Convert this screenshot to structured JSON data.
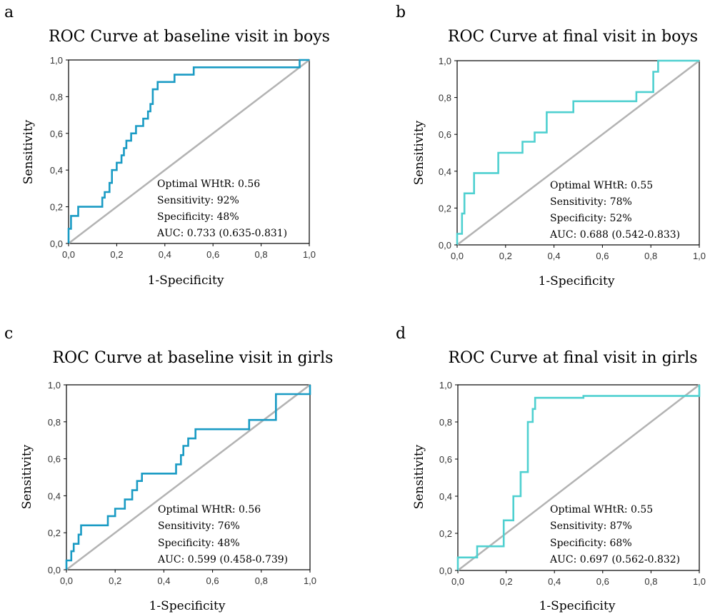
{
  "chart_data": [
    {
      "type": "line",
      "panel": "a",
      "title": "ROC Curve at baseline visit in boys",
      "xlabel": "1-Specificity",
      "ylabel": "Sensitivity",
      "xlim": [
        0,
        1
      ],
      "ylim": [
        0,
        1
      ],
      "xticks": [
        "0,0",
        "0,2",
        "0,4",
        "0,6",
        "0,8",
        "1,0"
      ],
      "yticks": [
        "0,0",
        "0,2",
        "0,4",
        "0,6",
        "0,8",
        "1,0"
      ],
      "color": "#1a9bc4",
      "reference_line_color": "#b3b3b3",
      "annotations": [
        "Optimal WHtR: 0.56",
        "Sensitivity: 92%",
        "Specificity: 48%",
        "AUC: 0.733 (0.635-0.831)"
      ],
      "x": [
        0,
        0,
        0.01,
        0.01,
        0.04,
        0.04,
        0.14,
        0.14,
        0.15,
        0.15,
        0.17,
        0.17,
        0.18,
        0.18,
        0.2,
        0.2,
        0.22,
        0.22,
        0.23,
        0.23,
        0.24,
        0.24,
        0.26,
        0.26,
        0.28,
        0.28,
        0.31,
        0.31,
        0.33,
        0.33,
        0.34,
        0.34,
        0.35,
        0.35,
        0.37,
        0.37,
        0.44,
        0.44,
        0.52,
        0.52,
        0.64,
        0.64,
        0.96,
        0.96,
        1
      ],
      "y": [
        0,
        0.08,
        0.08,
        0.15,
        0.15,
        0.2,
        0.2,
        0.25,
        0.25,
        0.28,
        0.28,
        0.33,
        0.33,
        0.4,
        0.4,
        0.44,
        0.44,
        0.48,
        0.48,
        0.52,
        0.52,
        0.56,
        0.56,
        0.6,
        0.6,
        0.64,
        0.64,
        0.68,
        0.68,
        0.72,
        0.72,
        0.76,
        0.76,
        0.84,
        0.84,
        0.88,
        0.88,
        0.92,
        0.92,
        0.96,
        0.96,
        0.96,
        0.96,
        1,
        1
      ]
    },
    {
      "type": "line",
      "panel": "b",
      "title": "ROC Curve at final visit in boys",
      "xlabel": "1-Specificity",
      "ylabel": "Sensitivity",
      "xlim": [
        0,
        1
      ],
      "ylim": [
        0,
        1
      ],
      "xticks": [
        "0,0",
        "0,2",
        "0,4",
        "0,6",
        "0,8",
        "1,0"
      ],
      "yticks": [
        "0,0",
        "0,2",
        "0,4",
        "0,6",
        "0,8",
        "1,0"
      ],
      "color": "#4fd0d0",
      "reference_line_color": "#b3b3b3",
      "annotations": [
        "Optimal WHtR: 0.55",
        "Sensitivity: 78%",
        "Specificity: 52%",
        "AUC: 0.688 (0.542-0.833)"
      ],
      "x": [
        0,
        0,
        0.02,
        0.02,
        0.03,
        0.03,
        0.07,
        0.07,
        0.17,
        0.17,
        0.27,
        0.27,
        0.32,
        0.32,
        0.37,
        0.37,
        0.48,
        0.48,
        0.74,
        0.74,
        0.81,
        0.81,
        0.83,
        0.83,
        1
      ],
      "y": [
        0,
        0.06,
        0.06,
        0.17,
        0.17,
        0.28,
        0.28,
        0.39,
        0.39,
        0.5,
        0.5,
        0.56,
        0.56,
        0.61,
        0.61,
        0.72,
        0.72,
        0.78,
        0.78,
        0.83,
        0.83,
        0.94,
        0.94,
        1,
        1
      ]
    },
    {
      "type": "line",
      "panel": "c",
      "title": "ROC Curve at baseline visit in girls",
      "xlabel": "1-Specificity",
      "ylabel": "Sensitivity",
      "xlim": [
        0,
        1
      ],
      "ylim": [
        0,
        1
      ],
      "xticks": [
        "0,0",
        "0,2",
        "0,4",
        "0,6",
        "0,8",
        "1,0"
      ],
      "yticks": [
        "0,0",
        "0,2",
        "0,4",
        "0,6",
        "0,8",
        "1,0"
      ],
      "color": "#1a9bc4",
      "reference_line_color": "#b3b3b3",
      "annotations": [
        "Optimal WHtR: 0.56",
        "Sensitivity: 76%",
        "Specificity: 48%",
        "AUC: 0.599 (0.458-0.739)"
      ],
      "x": [
        0,
        0,
        0.02,
        0.02,
        0.03,
        0.03,
        0.05,
        0.05,
        0.06,
        0.06,
        0.17,
        0.17,
        0.2,
        0.2,
        0.24,
        0.24,
        0.27,
        0.27,
        0.29,
        0.29,
        0.31,
        0.31,
        0.45,
        0.45,
        0.47,
        0.47,
        0.48,
        0.48,
        0.5,
        0.5,
        0.53,
        0.53,
        0.75,
        0.75,
        0.86,
        0.86,
        1,
        1
      ],
      "y": [
        0,
        0.05,
        0.05,
        0.1,
        0.1,
        0.14,
        0.14,
        0.19,
        0.19,
        0.24,
        0.24,
        0.29,
        0.29,
        0.33,
        0.33,
        0.38,
        0.38,
        0.43,
        0.43,
        0.48,
        0.48,
        0.52,
        0.52,
        0.57,
        0.57,
        0.62,
        0.62,
        0.67,
        0.67,
        0.71,
        0.71,
        0.76,
        0.76,
        0.81,
        0.81,
        0.95,
        0.95,
        1
      ]
    },
    {
      "type": "line",
      "panel": "d",
      "title": "ROC Curve at final visit in girls",
      "xlabel": "1-Specificity",
      "ylabel": "Sensitivity",
      "xlim": [
        0,
        1
      ],
      "ylim": [
        0,
        1
      ],
      "xticks": [
        "0,0",
        "0,2",
        "0,4",
        "0,6",
        "0,8",
        "1,0"
      ],
      "yticks": [
        "0,0",
        "0,2",
        "0,4",
        "0,6",
        "0,8",
        "1,0"
      ],
      "color": "#4fd0d0",
      "reference_line_color": "#b3b3b3",
      "annotations": [
        "Optimal WHtR: 0.55",
        "Sensitivity: 87%",
        "Specificity: 68%",
        "AUC: 0.697 (0.562-0.832)"
      ],
      "x": [
        0,
        0,
        0.08,
        0.08,
        0.19,
        0.19,
        0.23,
        0.23,
        0.26,
        0.26,
        0.29,
        0.29,
        0.31,
        0.31,
        0.32,
        0.32,
        0.52,
        0.52,
        1,
        1
      ],
      "y": [
        0,
        0.07,
        0.07,
        0.13,
        0.13,
        0.27,
        0.27,
        0.4,
        0.4,
        0.53,
        0.53,
        0.8,
        0.8,
        0.87,
        0.87,
        0.93,
        0.93,
        0.94,
        0.94,
        1
      ]
    }
  ],
  "panel_letters": [
    "a",
    "b",
    "c",
    "d"
  ]
}
